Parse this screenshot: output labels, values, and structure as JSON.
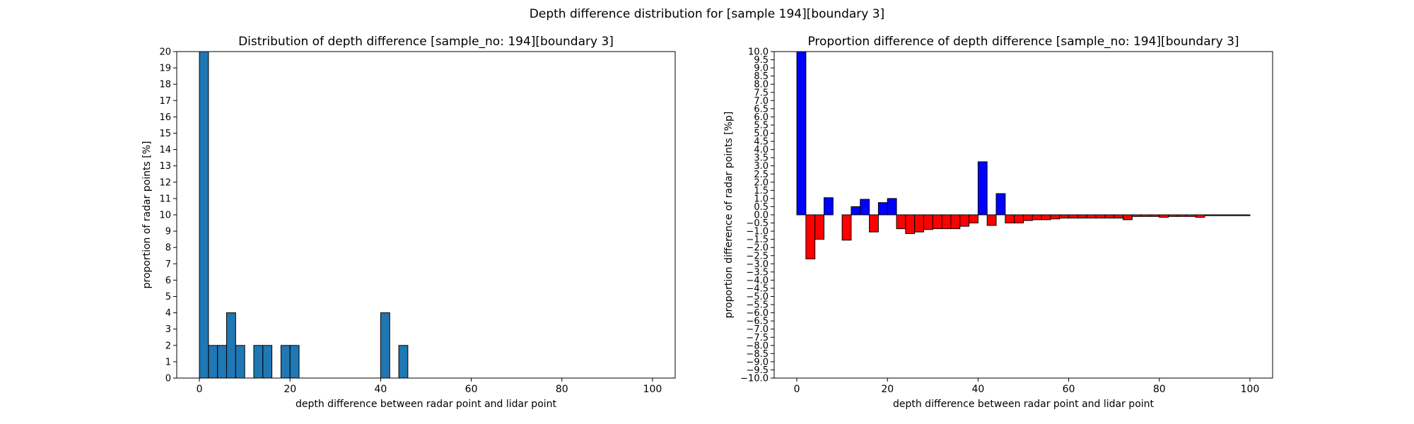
{
  "figure_title": "Depth difference distribution for [sample 194][boundary 3]",
  "chart_data": [
    {
      "type": "bar",
      "title": "Distribution of depth difference [sample_no: 194][boundary 3]",
      "xlabel": "depth difference between radar point and lidar point",
      "ylabel": "proportion of radar points [%]",
      "xlim": [
        -5,
        105
      ],
      "ylim": [
        0,
        20
      ],
      "xticks": [
        0,
        20,
        40,
        60,
        80,
        100
      ],
      "xtick_labels": [
        "0",
        "20",
        "40",
        "60",
        "80",
        "100"
      ],
      "yticks": [
        0,
        1,
        2,
        3,
        4,
        5,
        6,
        7,
        8,
        9,
        10,
        11,
        12,
        13,
        14,
        15,
        16,
        17,
        18,
        19,
        20
      ],
      "ytick_labels": [
        "0",
        "1",
        "2",
        "3",
        "4",
        "5",
        "6",
        "7",
        "8",
        "9",
        "10",
        "11",
        "12",
        "13",
        "14",
        "15",
        "16",
        "17",
        "18",
        "19",
        "20"
      ],
      "bin_width": 2,
      "bar_color": "#1f77b4",
      "edge_color": "#000000",
      "bins": [
        {
          "x": 0,
          "value": 20
        },
        {
          "x": 2,
          "value": 2
        },
        {
          "x": 4,
          "value": 2
        },
        {
          "x": 6,
          "value": 4
        },
        {
          "x": 8,
          "value": 2
        },
        {
          "x": 12,
          "value": 2
        },
        {
          "x": 14,
          "value": 2
        },
        {
          "x": 18,
          "value": 2
        },
        {
          "x": 20,
          "value": 2
        },
        {
          "x": 40,
          "value": 4
        },
        {
          "x": 44,
          "value": 2
        }
      ],
      "grid": false
    },
    {
      "type": "bar",
      "title": "Proportion difference of depth difference [sample_no: 194][boundary 3]",
      "xlabel": "depth difference between radar point and lidar point",
      "ylabel": "proportion difference of radar points [%p]",
      "xlim": [
        -5,
        105
      ],
      "ylim": [
        -10,
        10
      ],
      "xticks": [
        0,
        20,
        40,
        60,
        80,
        100
      ],
      "xtick_labels": [
        "0",
        "20",
        "40",
        "60",
        "80",
        "100"
      ],
      "yticks": [
        -10,
        -9.5,
        -9,
        -8.5,
        -8,
        -7.5,
        -7,
        -6.5,
        -6,
        -5.5,
        -5,
        -4.5,
        -4,
        -3.5,
        -3,
        -2.5,
        -2,
        -1.5,
        -1,
        -0.5,
        0,
        0.5,
        1,
        1.5,
        2,
        2.5,
        3,
        3.5,
        4,
        4.5,
        5,
        5.5,
        6,
        6.5,
        7,
        7.5,
        8,
        8.5,
        9,
        9.5,
        10
      ],
      "ytick_labels": [
        "−10.0",
        "−9.5",
        "−9.0",
        "−8.5",
        "−8.0",
        "−7.5",
        "−7.0",
        "−6.5",
        "−6.0",
        "−5.5",
        "−5.0",
        "−4.5",
        "−4.0",
        "−3.5",
        "−3.0",
        "−2.5",
        "−2.0",
        "−1.5",
        "−1.0",
        "−0.5",
        "0.0",
        "0.5",
        "1.0",
        "1.5",
        "2.0",
        "2.5",
        "3.0",
        "3.5",
        "4.0",
        "4.5",
        "5.0",
        "5.5",
        "6.0",
        "6.5",
        "7.0",
        "7.5",
        "8.0",
        "8.5",
        "9.0",
        "9.5",
        "10.0"
      ],
      "bin_width": 2,
      "positive_color": "#0000ff",
      "negative_color": "#ff0000",
      "edge_color": "#000000",
      "bins": [
        {
          "x": 0,
          "value": 10.0
        },
        {
          "x": 2,
          "value": -2.7
        },
        {
          "x": 4,
          "value": -1.5
        },
        {
          "x": 6,
          "value": 1.05
        },
        {
          "x": 10,
          "value": -1.55
        },
        {
          "x": 12,
          "value": 0.5
        },
        {
          "x": 14,
          "value": 0.95
        },
        {
          "x": 16,
          "value": -1.05
        },
        {
          "x": 18,
          "value": 0.75
        },
        {
          "x": 20,
          "value": 1.0
        },
        {
          "x": 22,
          "value": -0.85
        },
        {
          "x": 24,
          "value": -1.15
        },
        {
          "x": 26,
          "value": -1.05
        },
        {
          "x": 28,
          "value": -0.9
        },
        {
          "x": 30,
          "value": -0.85
        },
        {
          "x": 32,
          "value": -0.85
        },
        {
          "x": 34,
          "value": -0.85
        },
        {
          "x": 36,
          "value": -0.7
        },
        {
          "x": 38,
          "value": -0.5
        },
        {
          "x": 40,
          "value": 3.25
        },
        {
          "x": 42,
          "value": -0.65
        },
        {
          "x": 44,
          "value": 1.3
        },
        {
          "x": 46,
          "value": -0.5
        },
        {
          "x": 48,
          "value": -0.5
        },
        {
          "x": 50,
          "value": -0.35
        },
        {
          "x": 52,
          "value": -0.3
        },
        {
          "x": 54,
          "value": -0.3
        },
        {
          "x": 56,
          "value": -0.25
        },
        {
          "x": 58,
          "value": -0.2
        },
        {
          "x": 60,
          "value": -0.2
        },
        {
          "x": 62,
          "value": -0.2
        },
        {
          "x": 64,
          "value": -0.2
        },
        {
          "x": 66,
          "value": -0.2
        },
        {
          "x": 68,
          "value": -0.2
        },
        {
          "x": 70,
          "value": -0.2
        },
        {
          "x": 72,
          "value": -0.3
        },
        {
          "x": 74,
          "value": -0.1
        },
        {
          "x": 76,
          "value": -0.1
        },
        {
          "x": 78,
          "value": -0.1
        },
        {
          "x": 80,
          "value": -0.15
        },
        {
          "x": 82,
          "value": -0.1
        },
        {
          "x": 84,
          "value": -0.1
        },
        {
          "x": 86,
          "value": -0.1
        },
        {
          "x": 88,
          "value": -0.15
        },
        {
          "x": 90,
          "value": -0.05
        },
        {
          "x": 92,
          "value": -0.05
        },
        {
          "x": 94,
          "value": -0.05
        },
        {
          "x": 96,
          "value": -0.05
        },
        {
          "x": 98,
          "value": -0.05
        }
      ],
      "grid": false
    }
  ]
}
